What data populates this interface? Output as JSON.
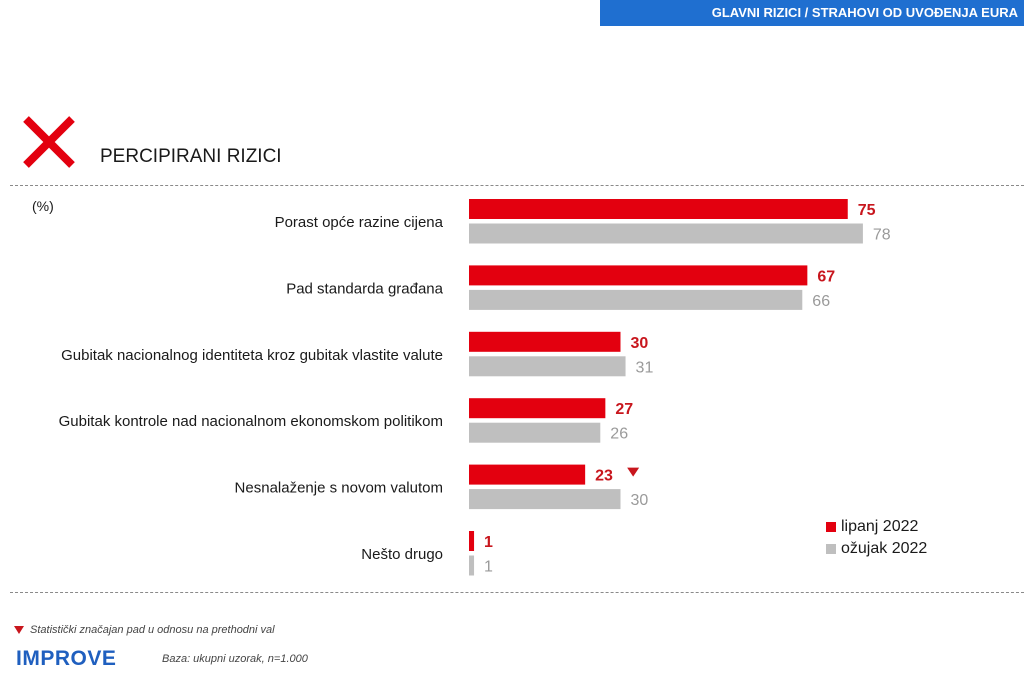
{
  "header": {
    "title": "GLAVNI RIZICI / STRAHOVI OD UVOĐENJA EURA"
  },
  "section": {
    "title": "PERCIPIRANI RIZICI",
    "icon": "x-icon"
  },
  "colors": {
    "series0": "#e3000f",
    "series1": "#bfbfbf",
    "header": "#1f6fd0",
    "marker": "#c8161d"
  },
  "chart_data": {
    "type": "bar",
    "orientation": "horizontal",
    "unit": "(%)",
    "categories": [
      "Porast opće razine cijena",
      "Pad standarda građana",
      "Gubitak nacionalnog identiteta kroz gubitak vlastite valute",
      "Gubitak kontrole nad nacionalnom ekonomskom politikom",
      "Nesnalaženje s novom valutom",
      "Nešto drugo"
    ],
    "series": [
      {
        "name": "lipanj 2022",
        "values": [
          75,
          67,
          30,
          27,
          23,
          1
        ]
      },
      {
        "name": "ožujak 2022",
        "values": [
          78,
          66,
          31,
          26,
          30,
          1
        ]
      }
    ],
    "significant_decrease": [
      false,
      false,
      false,
      false,
      true,
      false
    ],
    "xlim": [
      0,
      100
    ],
    "grid": false,
    "legend_position": "bottom-right"
  },
  "legend": {
    "items": [
      "lipanj 2022",
      "ožujak 2022"
    ]
  },
  "footer": {
    "note": "Statistički značajan pad u odnosu na prethodni val",
    "logo": "IMPROVE",
    "base": "Baza: ukupni uzorak, n=1.000"
  }
}
